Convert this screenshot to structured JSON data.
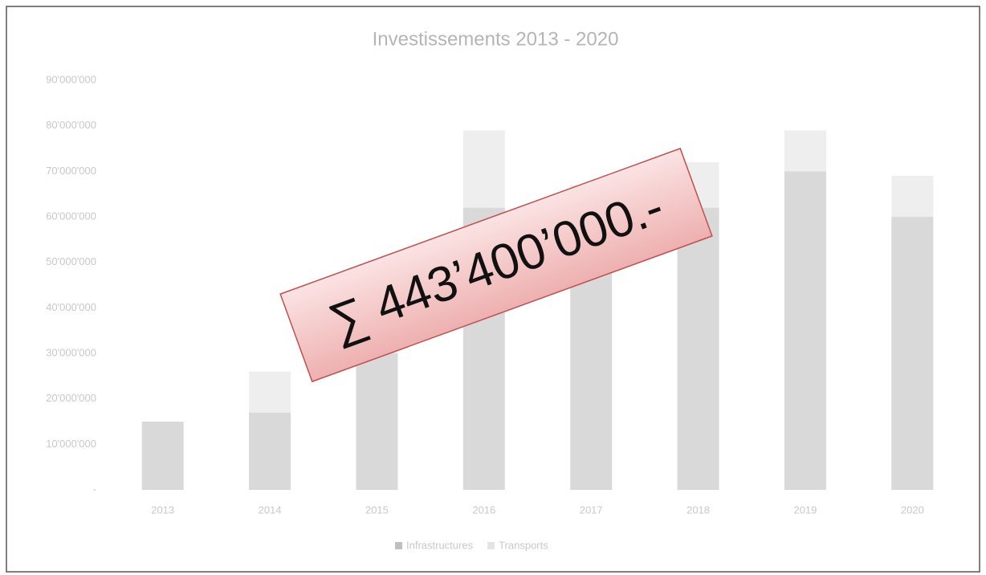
{
  "chart_data": {
    "type": "bar",
    "stacked": true,
    "title": "Investissements 2013 - 2020",
    "categories": [
      "2013",
      "2014",
      "2015",
      "2016",
      "2017",
      "2018",
      "2019",
      "2020"
    ],
    "series": [
      {
        "name": "Infrastructures",
        "color": "#d9d9d9",
        "values": [
          15000000,
          17000000,
          30000000,
          62000000,
          58000000,
          62000000,
          70000000,
          60000000
        ]
      },
      {
        "name": "Transports",
        "color": "#eeeeee",
        "values": [
          0,
          9000000,
          6000000,
          17000000,
          9000000,
          10000000,
          9000000,
          9000000
        ]
      }
    ],
    "ylim": [
      0,
      90000000
    ],
    "yticks": [
      {
        "value": 0,
        "label": "-"
      },
      {
        "value": 10000000,
        "label": "10'000'000"
      },
      {
        "value": 20000000,
        "label": "20'000'000"
      },
      {
        "value": 30000000,
        "label": "30'000'000"
      },
      {
        "value": 40000000,
        "label": "40'000'000"
      },
      {
        "value": 50000000,
        "label": "50'000'000"
      },
      {
        "value": 60000000,
        "label": "60'000'000"
      },
      {
        "value": 70000000,
        "label": "70'000'000"
      },
      {
        "value": 80000000,
        "label": "80'000'000"
      },
      {
        "value": 90000000,
        "label": "90'000'000"
      }
    ],
    "legend": "bottom",
    "annotation": "∑ 443’400’000.-"
  }
}
